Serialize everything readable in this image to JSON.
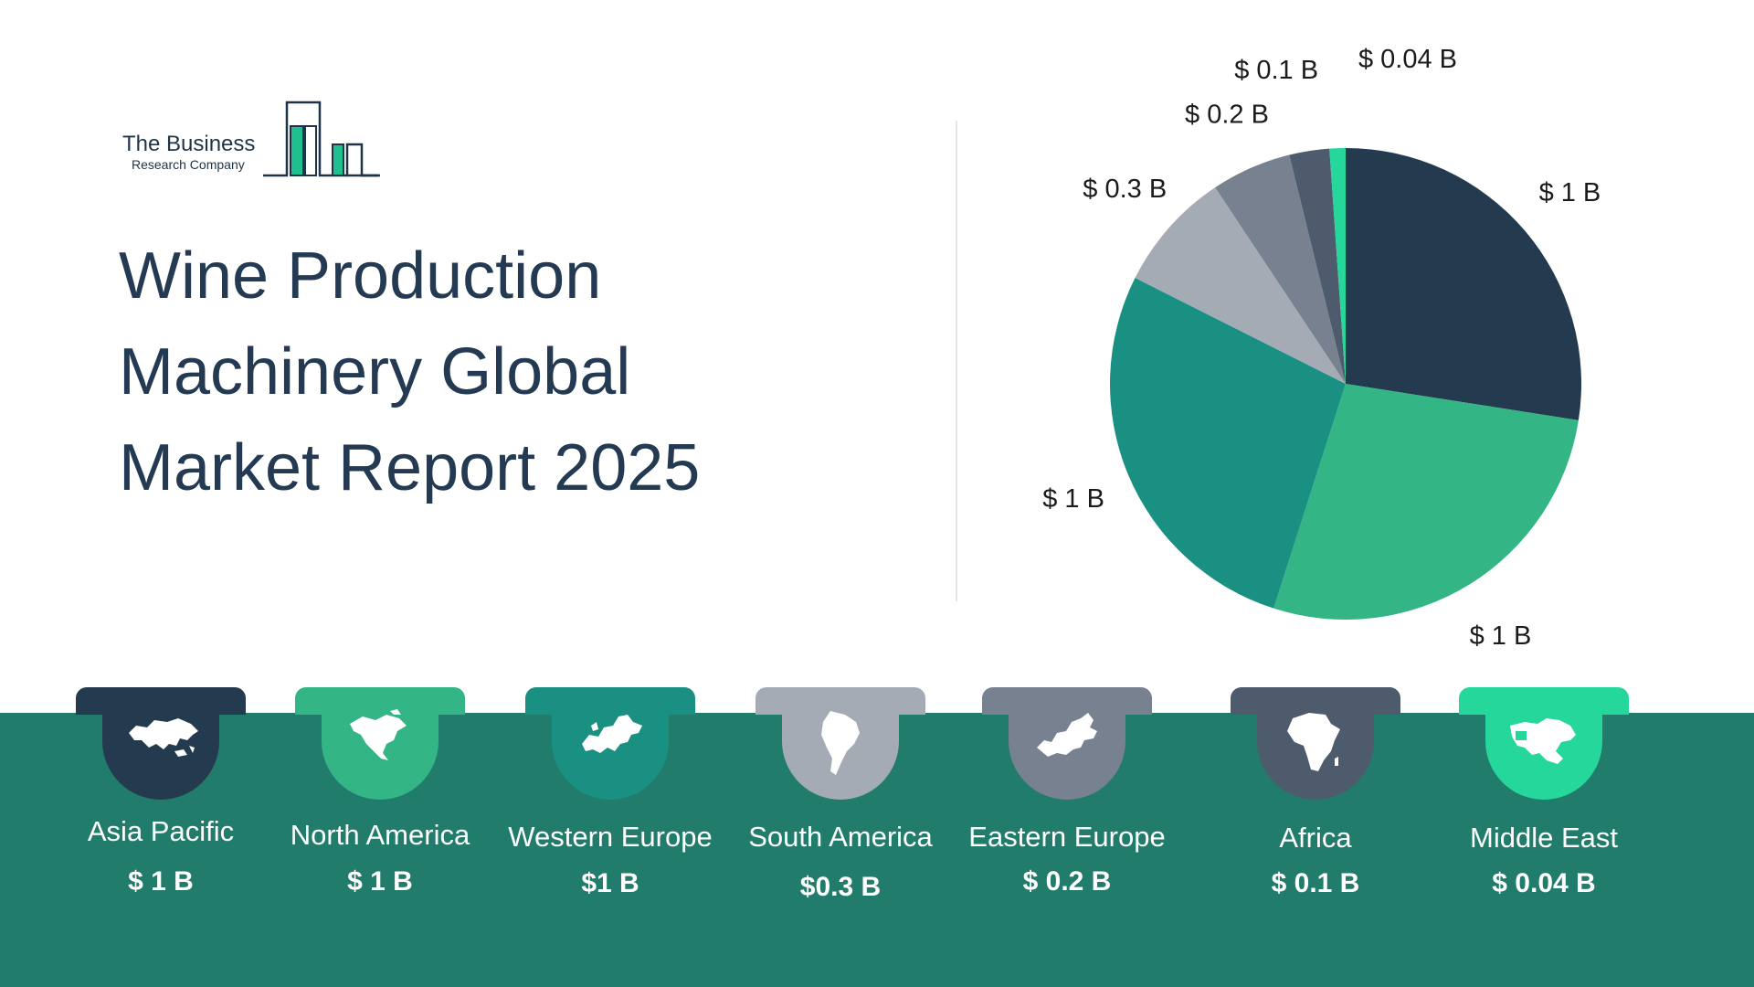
{
  "brand": {
    "line1": "The Business",
    "line2": "Research Company",
    "accent": "#1fbf8f",
    "ink": "#1f3448"
  },
  "title_lines": [
    "Wine Production",
    "Machinery Global",
    "Market Report 2025"
  ],
  "colors": {
    "band": "#217c6b",
    "asia_pacific": "#243a4f",
    "north_america": "#34b585",
    "western_europe": "#1a9083",
    "south_america": "#a5abb4",
    "eastern_europe": "#77818f",
    "africa": "#4d5b6d",
    "middle_east": "#25d79b"
  },
  "chart_data": {
    "type": "pie",
    "start": "top, clockwise",
    "slices": [
      {
        "region": "Asia Pacific",
        "value": 1.0,
        "label": "$ 1 B",
        "color": "#243a4f"
      },
      {
        "region": "North America",
        "value": 1.0,
        "label": "$ 1 B",
        "color": "#34b585"
      },
      {
        "region": "Western Europe",
        "value": 1.0,
        "label": "$ 1 B",
        "color": "#1a9083"
      },
      {
        "region": "South America",
        "value": 0.3,
        "label": "$ 0.3 B",
        "color": "#a5abb4"
      },
      {
        "region": "Eastern Europe",
        "value": 0.2,
        "label": "$ 0.2 B",
        "color": "#77818f"
      },
      {
        "region": "Africa",
        "value": 0.1,
        "label": "$ 0.1 B",
        "color": "#4d5b6d"
      },
      {
        "region": "Middle East",
        "value": 0.04,
        "label": "$ 0.04 B",
        "color": "#25d79b"
      }
    ]
  },
  "regions": [
    {
      "name": "Asia Pacific",
      "value": "$ 1 B",
      "icon": "asia-map-icon",
      "color": "#243a4f"
    },
    {
      "name": "North America",
      "value": "$ 1 B",
      "icon": "north-america-map-icon",
      "color": "#34b585"
    },
    {
      "name": "Western Europe",
      "value": "$1 B",
      "icon": "western-europe-map-icon",
      "color": "#1a9083"
    },
    {
      "name": "South America",
      "value": "$0.3 B",
      "icon": "south-america-map-icon",
      "color": "#a5abb4"
    },
    {
      "name": "Eastern Europe",
      "value": "$ 0.2 B",
      "icon": "eastern-europe-map-icon",
      "color": "#77818f"
    },
    {
      "name": "Africa",
      "value": "$ 0.1 B",
      "icon": "africa-map-icon",
      "color": "#4d5b6d"
    },
    {
      "name": "Middle East",
      "value": "$ 0.04 B",
      "icon": "middle-east-map-icon",
      "color": "#25d79b"
    }
  ]
}
